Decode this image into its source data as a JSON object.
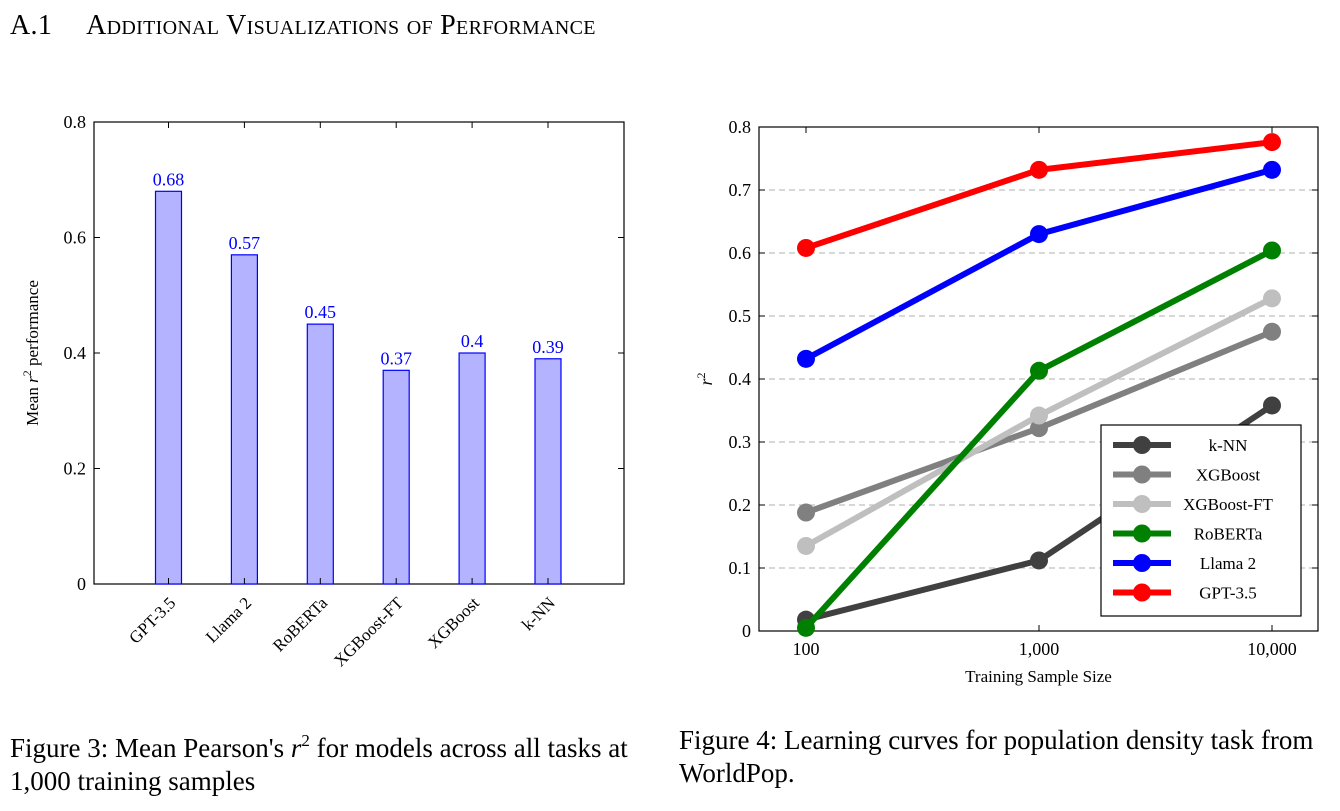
{
  "section": {
    "number": "A.1",
    "title": "Additional Visualizations of Performance"
  },
  "figure3": {
    "caption_label": "Figure 3:",
    "caption_pre": "Mean Pearson's",
    "caption_var": "r",
    "caption_sup": "2",
    "caption_post": "for models across all tasks at 1,000 training samples"
  },
  "figure4": {
    "caption_label": "Figure 4:",
    "caption_text": "Learning curves for population density task from WorldPop."
  },
  "chart_data": [
    {
      "type": "bar",
      "ylabel": "Mean r^2 performance",
      "ylabel_pre": "Mean",
      "ylabel_var": "r",
      "ylabel_sup": "2",
      "ylabel_post": "performance",
      "categories": [
        "GPT-3.5",
        "Llama 2",
        "RoBERTa",
        "XGBoost-FT",
        "XGBoost",
        "k-NN"
      ],
      "values": [
        0.68,
        0.57,
        0.45,
        0.37,
        0.4,
        0.39
      ],
      "value_labels": [
        "0.68",
        "0.57",
        "0.45",
        "0.37",
        "0.4",
        "0.39"
      ],
      "ylim": [
        0,
        0.8
      ],
      "yticks": [
        "0",
        "0.2",
        "0.4",
        "0.6",
        "0.8"
      ],
      "bar_fill": "#b3b3ff",
      "bar_stroke": "#0000ff",
      "label_color": "#0000ff",
      "grid": false
    },
    {
      "type": "line",
      "xlabel": "Training Sample Size",
      "ylabel": "r^2",
      "ylabel_var": "r",
      "ylabel_sup": "2",
      "x": [
        100,
        1000,
        10000
      ],
      "xticks": [
        "100",
        "1,000",
        "10,000"
      ],
      "xscale": "log",
      "ylim": [
        0,
        0.8
      ],
      "yticks": [
        "0",
        "0.1",
        "0.2",
        "0.3",
        "0.4",
        "0.5",
        "0.6",
        "0.7",
        "0.8"
      ],
      "grid": "horizontal dashed",
      "legend_position": "bottom-right",
      "series": [
        {
          "name": "k-NN",
          "values": [
            0.018,
            0.112,
            0.358
          ],
          "color": "#404040"
        },
        {
          "name": "XGBoost",
          "values": [
            0.188,
            0.322,
            0.475
          ],
          "color": "#808080"
        },
        {
          "name": "XGBoost-FT",
          "values": [
            0.135,
            0.342,
            0.528
          ],
          "color": "#bfbfbf"
        },
        {
          "name": "RoBERTa",
          "values": [
            0.005,
            0.413,
            0.604
          ],
          "color": "#008000"
        },
        {
          "name": "Llama 2",
          "values": [
            0.432,
            0.63,
            0.732
          ],
          "color": "#0000ff"
        },
        {
          "name": "GPT-3.5",
          "values": [
            0.608,
            0.732,
            0.776
          ],
          "color": "#ff0000"
        }
      ]
    }
  ]
}
